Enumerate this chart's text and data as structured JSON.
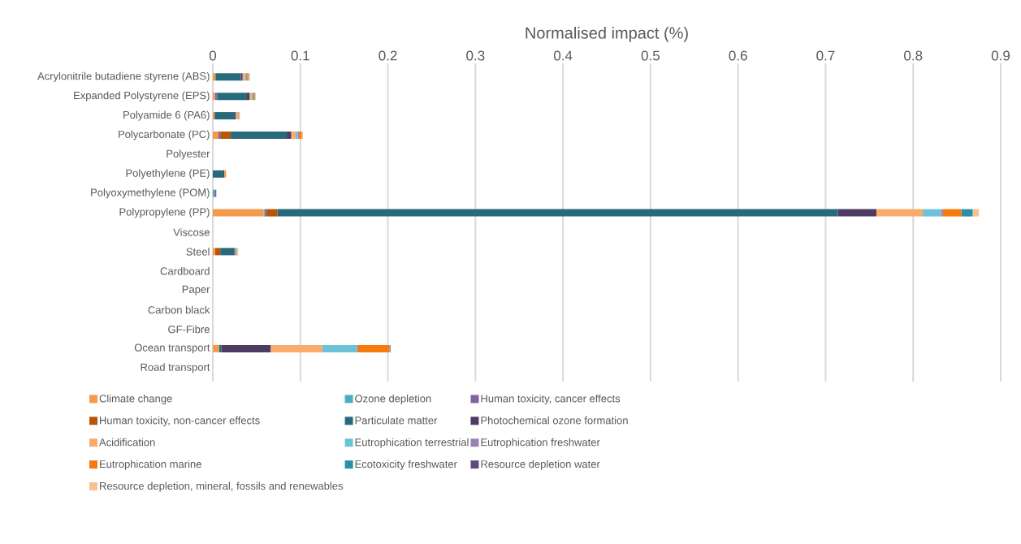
{
  "chart_data": {
    "type": "bar",
    "orientation": "horizontal",
    "stacked": true,
    "xlabel": "Normalised impact (%)",
    "categories": [
      "Acrylonitrile butadiene styrene (ABS)",
      "Expanded Polystyrene (EPS)",
      "Polyamide 6 (PA6)",
      "Polycarbonate (PC)",
      "Polyester",
      "Polyethylene (PE)",
      "Polyoxymethylene (POM)",
      "Polypropylene (PP)",
      "Viscose",
      "Steel",
      "Cardboard",
      "Paper",
      "Carbon black",
      "GF-Fibre",
      "Ocean transport",
      "Road transport"
    ],
    "series": [
      {
        "name": "Climate change",
        "color": "#f59a4a",
        "values": [
          0.003,
          0.0025,
          0.002,
          0.0065,
          0,
          0,
          0,
          0.058,
          0,
          0.0025,
          0,
          0,
          0,
          0,
          0.007,
          0
        ]
      },
      {
        "name": "Ozone depletion",
        "color": "#4bacc6",
        "values": [
          0,
          0,
          0,
          0,
          0,
          0,
          0.002,
          0.001,
          0,
          0,
          0,
          0,
          0,
          0,
          0,
          0
        ]
      },
      {
        "name": "Human toxicity, cancer effects",
        "color": "#8064a2",
        "values": [
          0,
          0.0025,
          0,
          0.002,
          0,
          0,
          0.002,
          0.002,
          0,
          0,
          0,
          0,
          0,
          0,
          0,
          0
        ]
      },
      {
        "name": "Human toxicity, non-cancer effects",
        "color": "#b65708",
        "values": [
          0,
          0,
          0,
          0.012,
          0,
          0,
          0,
          0.013,
          0,
          0.006,
          0,
          0,
          0,
          0,
          0,
          0
        ]
      },
      {
        "name": "Particulate matter",
        "color": "#276a7c",
        "values": [
          0.029,
          0.034,
          0.023,
          0.064,
          0,
          0.012,
          0,
          0.64,
          0,
          0.016,
          0,
          0,
          0,
          0,
          0.003,
          0
        ]
      },
      {
        "name": "Photochemical ozone formation",
        "color": "#4d3b62",
        "values": [
          0.002,
          0.003,
          0.001,
          0.005,
          0,
          0.001,
          0,
          0.044,
          0,
          0.001,
          0,
          0,
          0,
          0,
          0.056,
          0
        ]
      },
      {
        "name": "Acidification",
        "color": "#f9ab6b",
        "values": [
          0.0025,
          0.002,
          0.002,
          0.005,
          0,
          0.001,
          0,
          0.053,
          0,
          0.0015,
          0,
          0,
          0,
          0,
          0.059,
          0
        ]
      },
      {
        "name": "Eutrophication terrestrial",
        "color": "#6ec1d6",
        "values": [
          0.0015,
          0.0015,
          0.001,
          0.0025,
          0,
          0,
          0,
          0.021,
          0,
          0.001,
          0,
          0,
          0,
          0,
          0.04,
          0
        ]
      },
      {
        "name": "Eutrophication freshwater",
        "color": "#9983b5",
        "values": [
          0,
          0,
          0,
          0.0015,
          0,
          0,
          0,
          0.002,
          0,
          0,
          0,
          0,
          0,
          0,
          0,
          0
        ]
      },
      {
        "name": "Eutrophication marine",
        "color": "#f67a0e",
        "values": [
          0.0015,
          0.0015,
          0.001,
          0.003,
          0,
          0.001,
          0,
          0.021,
          0,
          0,
          0,
          0,
          0,
          0,
          0.037,
          0
        ]
      },
      {
        "name": "Ecotoxicity freshwater",
        "color": "#2c8fa8",
        "values": [
          0.001,
          0.001,
          0,
          0,
          0,
          0,
          0,
          0.013,
          0,
          0,
          0,
          0,
          0,
          0,
          0.001,
          0
        ]
      },
      {
        "name": "Resource depletion water",
        "color": "#5f497a",
        "values": [
          0,
          0,
          0,
          0,
          0,
          0,
          0,
          0,
          0,
          0,
          0,
          0,
          0,
          0,
          0,
          0
        ]
      },
      {
        "name": "Resource depletion, mineral, fossils and renewables",
        "color": "#fac08f",
        "values": [
          0.002,
          0.001,
          0.001,
          0.0015,
          0,
          0,
          0,
          0.007,
          0,
          0.001,
          0,
          0,
          0,
          0,
          0,
          0
        ]
      }
    ],
    "xlim": [
      0,
      0.9
    ],
    "xticks": [
      0,
      0.1,
      0.2,
      0.3,
      0.4,
      0.5,
      0.6,
      0.7,
      0.8,
      0.9
    ],
    "grid": "x",
    "legend": "bottom"
  }
}
